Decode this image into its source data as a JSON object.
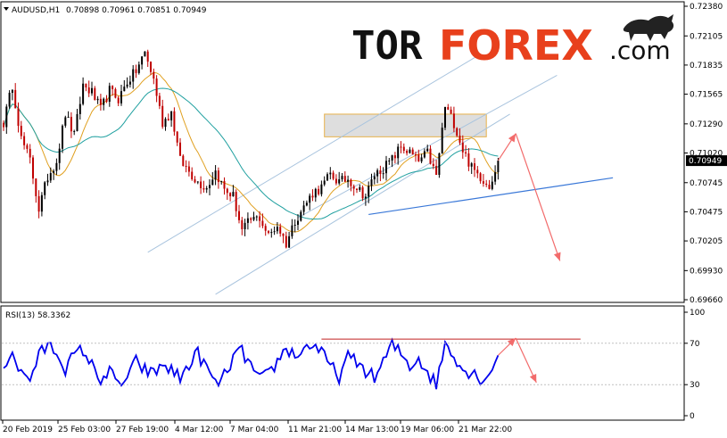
{
  "header": {
    "symbol": "AUDUSD,H1",
    "ohlc": "0.70898 0.70961 0.70851 0.70949"
  },
  "logo": {
    "part1": "TOR",
    "part2": "FOREX",
    "part3": ".com"
  },
  "current_price_label": "0.70949",
  "rsi_header": "RSI(13) 58.3362",
  "colors": {
    "candle_up": "#000000",
    "candle_down": "#c00000",
    "ma_fast": "#e0a020",
    "ma_slow": "#20a0a0",
    "channel": "#a9c4de",
    "trendline": "#3a78d8",
    "arrow": "#f26b6b",
    "zone_fill": "#d8d8d8",
    "zone_border": "#e7b14a",
    "rsi_line": "#0000ee",
    "rsi_resist": "#c02020"
  },
  "chart_data": [
    {
      "type": "candlestick",
      "title": "AUDUSD,H1",
      "x_tick_labels": [
        "20 Feb 2019",
        "25 Feb 03:00",
        "27 Feb 19:00",
        "4 Mar 12:00",
        "7 Mar 04:00",
        "11 Mar 21:00",
        "14 Mar 13:00",
        "19 Mar 06:00",
        "21 Mar 22:00"
      ],
      "y_tick_labels": [
        "0.72380",
        "0.72105",
        "0.71835",
        "0.71565",
        "0.71290",
        "0.71020",
        "0.70745",
        "0.70475",
        "0.70205",
        "0.69930",
        "0.69660"
      ],
      "ylim": [
        0.6966,
        0.7238
      ],
      "current_price": 0.70949,
      "resistance_zone": [
        0.7117,
        0.7138
      ],
      "projected_path": [
        0.70949,
        0.712,
        0.7002
      ],
      "trendline_from": 0.7045,
      "trendline_to": 0.7079,
      "anchors": [
        [
          0,
          0.713
        ],
        [
          3,
          0.7165
        ],
        [
          6,
          0.7115
        ],
        [
          9,
          0.7095
        ],
        [
          12,
          0.705
        ],
        [
          15,
          0.708
        ],
        [
          18,
          0.7095
        ],
        [
          21,
          0.7138
        ],
        [
          24,
          0.7118
        ],
        [
          27,
          0.7165
        ],
        [
          30,
          0.7158
        ],
        [
          33,
          0.7142
        ],
        [
          36,
          0.716
        ],
        [
          39,
          0.7152
        ],
        [
          42,
          0.7168
        ],
        [
          45,
          0.7178
        ],
        [
          48,
          0.7195
        ],
        [
          51,
          0.717
        ],
        [
          54,
          0.713
        ],
        [
          57,
          0.714
        ],
        [
          60,
          0.7095
        ],
        [
          63,
          0.7085
        ],
        [
          66,
          0.7075
        ],
        [
          69,
          0.707
        ],
        [
          72,
          0.7085
        ],
        [
          75,
          0.7068
        ],
        [
          78,
          0.7062
        ],
        [
          81,
          0.703
        ],
        [
          84,
          0.704
        ],
        [
          87,
          0.7042
        ],
        [
          90,
          0.7025
        ],
        [
          93,
          0.7035
        ],
        [
          96,
          0.7018
        ],
        [
          99,
          0.704
        ],
        [
          102,
          0.7052
        ],
        [
          105,
          0.7065
        ],
        [
          108,
          0.707
        ],
        [
          111,
          0.7082
        ],
        [
          114,
          0.7075
        ],
        [
          117,
          0.7078
        ],
        [
          120,
          0.707
        ],
        [
          123,
          0.7062
        ],
        [
          126,
          0.7082
        ],
        [
          129,
          0.7088
        ],
        [
          132,
          0.7096
        ],
        [
          135,
          0.7108
        ],
        [
          138,
          0.7102
        ],
        [
          141,
          0.7094
        ],
        [
          144,
          0.7102
        ],
        [
          147,
          0.708
        ],
        [
          150,
          0.7145
        ],
        [
          153,
          0.713
        ],
        [
          156,
          0.7105
        ],
        [
          159,
          0.7088
        ],
        [
          162,
          0.708
        ],
        [
          165,
          0.7072
        ],
        [
          168,
          0.7094
        ]
      ]
    },
    {
      "type": "line",
      "title": "RSI(13) 58.3362",
      "y_tick_labels": [
        "100",
        "70",
        "30",
        "0"
      ],
      "ylim": [
        0,
        100
      ],
      "resistance_level": 74,
      "projected_path": [
        58.3,
        75,
        32
      ],
      "anchors": [
        [
          0,
          50
        ],
        [
          3,
          62
        ],
        [
          6,
          40
        ],
        [
          9,
          36
        ],
        [
          12,
          58
        ],
        [
          15,
          68
        ],
        [
          18,
          62
        ],
        [
          21,
          46
        ],
        [
          24,
          58
        ],
        [
          27,
          64
        ],
        [
          30,
          48
        ],
        [
          33,
          36
        ],
        [
          36,
          42
        ],
        [
          39,
          30
        ],
        [
          42,
          36
        ],
        [
          45,
          52
        ],
        [
          48,
          44
        ],
        [
          51,
          40
        ],
        [
          54,
          50
        ],
        [
          57,
          44
        ],
        [
          60,
          36
        ],
        [
          63,
          50
        ],
        [
          66,
          60
        ],
        [
          69,
          46
        ],
        [
          72,
          30
        ],
        [
          75,
          38
        ],
        [
          78,
          56
        ],
        [
          81,
          62
        ],
        [
          84,
          48
        ],
        [
          87,
          34
        ],
        [
          90,
          40
        ],
        [
          93,
          52
        ],
        [
          96,
          66
        ],
        [
          99,
          58
        ],
        [
          102,
          64
        ],
        [
          105,
          70
        ],
        [
          108,
          60
        ],
        [
          111,
          48
        ],
        [
          114,
          38
        ],
        [
          117,
          56
        ],
        [
          120,
          52
        ],
        [
          123,
          44
        ],
        [
          126,
          36
        ],
        [
          129,
          52
        ],
        [
          132,
          68
        ],
        [
          135,
          60
        ],
        [
          138,
          48
        ],
        [
          141,
          56
        ],
        [
          144,
          42
        ],
        [
          147,
          30
        ],
        [
          150,
          70
        ],
        [
          153,
          60
        ],
        [
          156,
          44
        ],
        [
          159,
          42
        ],
        [
          162,
          36
        ],
        [
          165,
          40
        ],
        [
          168,
          58
        ]
      ]
    }
  ]
}
